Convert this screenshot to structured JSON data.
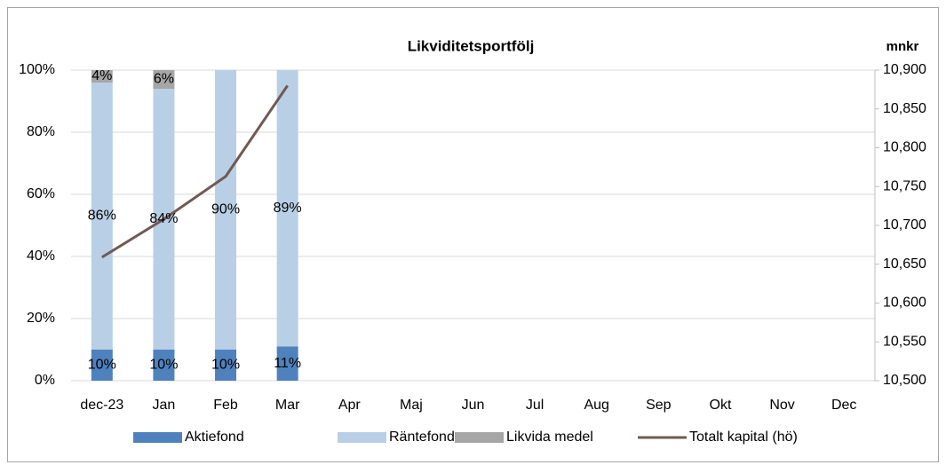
{
  "chart_data": {
    "type": "bar",
    "title": "Likviditetsportfölj",
    "y2_label": "mnkr",
    "categories": [
      "dec-23",
      "Jan",
      "Feb",
      "Mar",
      "Apr",
      "Maj",
      "Jun",
      "Jul",
      "Aug",
      "Sep",
      "Okt",
      "Nov",
      "Dec"
    ],
    "series": [
      {
        "name": "Aktiefond",
        "color": "#4f81bd",
        "values": [
          10,
          10,
          10,
          11,
          null,
          null,
          null,
          null,
          null,
          null,
          null,
          null,
          null
        ],
        "value_labels": [
          "10%",
          "10%",
          "10%",
          "11%",
          null,
          null,
          null,
          null,
          null,
          null,
          null,
          null,
          null
        ]
      },
      {
        "name": "Räntefond",
        "color": "#b9cfe5",
        "values": [
          86,
          84,
          90,
          89,
          null,
          null,
          null,
          null,
          null,
          null,
          null,
          null,
          null
        ],
        "value_labels": [
          "86%",
          "84%",
          "90%",
          "89%",
          null,
          null,
          null,
          null,
          null,
          null,
          null,
          null,
          null
        ]
      },
      {
        "name": "Likvida medel",
        "color": "#a6a6a6",
        "values": [
          4,
          6,
          0,
          0,
          null,
          null,
          null,
          null,
          null,
          null,
          null,
          null,
          null
        ],
        "value_labels": [
          "4%",
          "6%",
          null,
          null,
          null,
          null,
          null,
          null,
          null,
          null,
          null,
          null,
          null
        ]
      },
      {
        "name": "Totalt kapital (hö)",
        "type": "line",
        "axis": "y2",
        "color": "#6f5a55",
        "values": [
          10659,
          10708,
          10763,
          10880,
          null,
          null,
          null,
          null,
          null,
          null,
          null,
          null,
          null
        ]
      }
    ],
    "ylim": [
      0,
      100
    ],
    "yticks": [
      {
        "value": 0,
        "label": "0%"
      },
      {
        "value": 20,
        "label": "20%"
      },
      {
        "value": 40,
        "label": "40%"
      },
      {
        "value": 60,
        "label": "60%"
      },
      {
        "value": 80,
        "label": "80%"
      },
      {
        "value": 100,
        "label": "100%"
      }
    ],
    "y2lim": [
      10500,
      10900
    ],
    "y2ticks": [
      {
        "value": 10500,
        "label": "10,500"
      },
      {
        "value": 10550,
        "label": "10,550"
      },
      {
        "value": 10600,
        "label": "10,600"
      },
      {
        "value": 10650,
        "label": "10,650"
      },
      {
        "value": 10700,
        "label": "10,700"
      },
      {
        "value": 10750,
        "label": "10,750"
      },
      {
        "value": 10800,
        "label": "10,800"
      },
      {
        "value": 10850,
        "label": "10,850"
      },
      {
        "value": 10900,
        "label": "10,900"
      }
    ],
    "grid": true,
    "legend": "bottom"
  }
}
